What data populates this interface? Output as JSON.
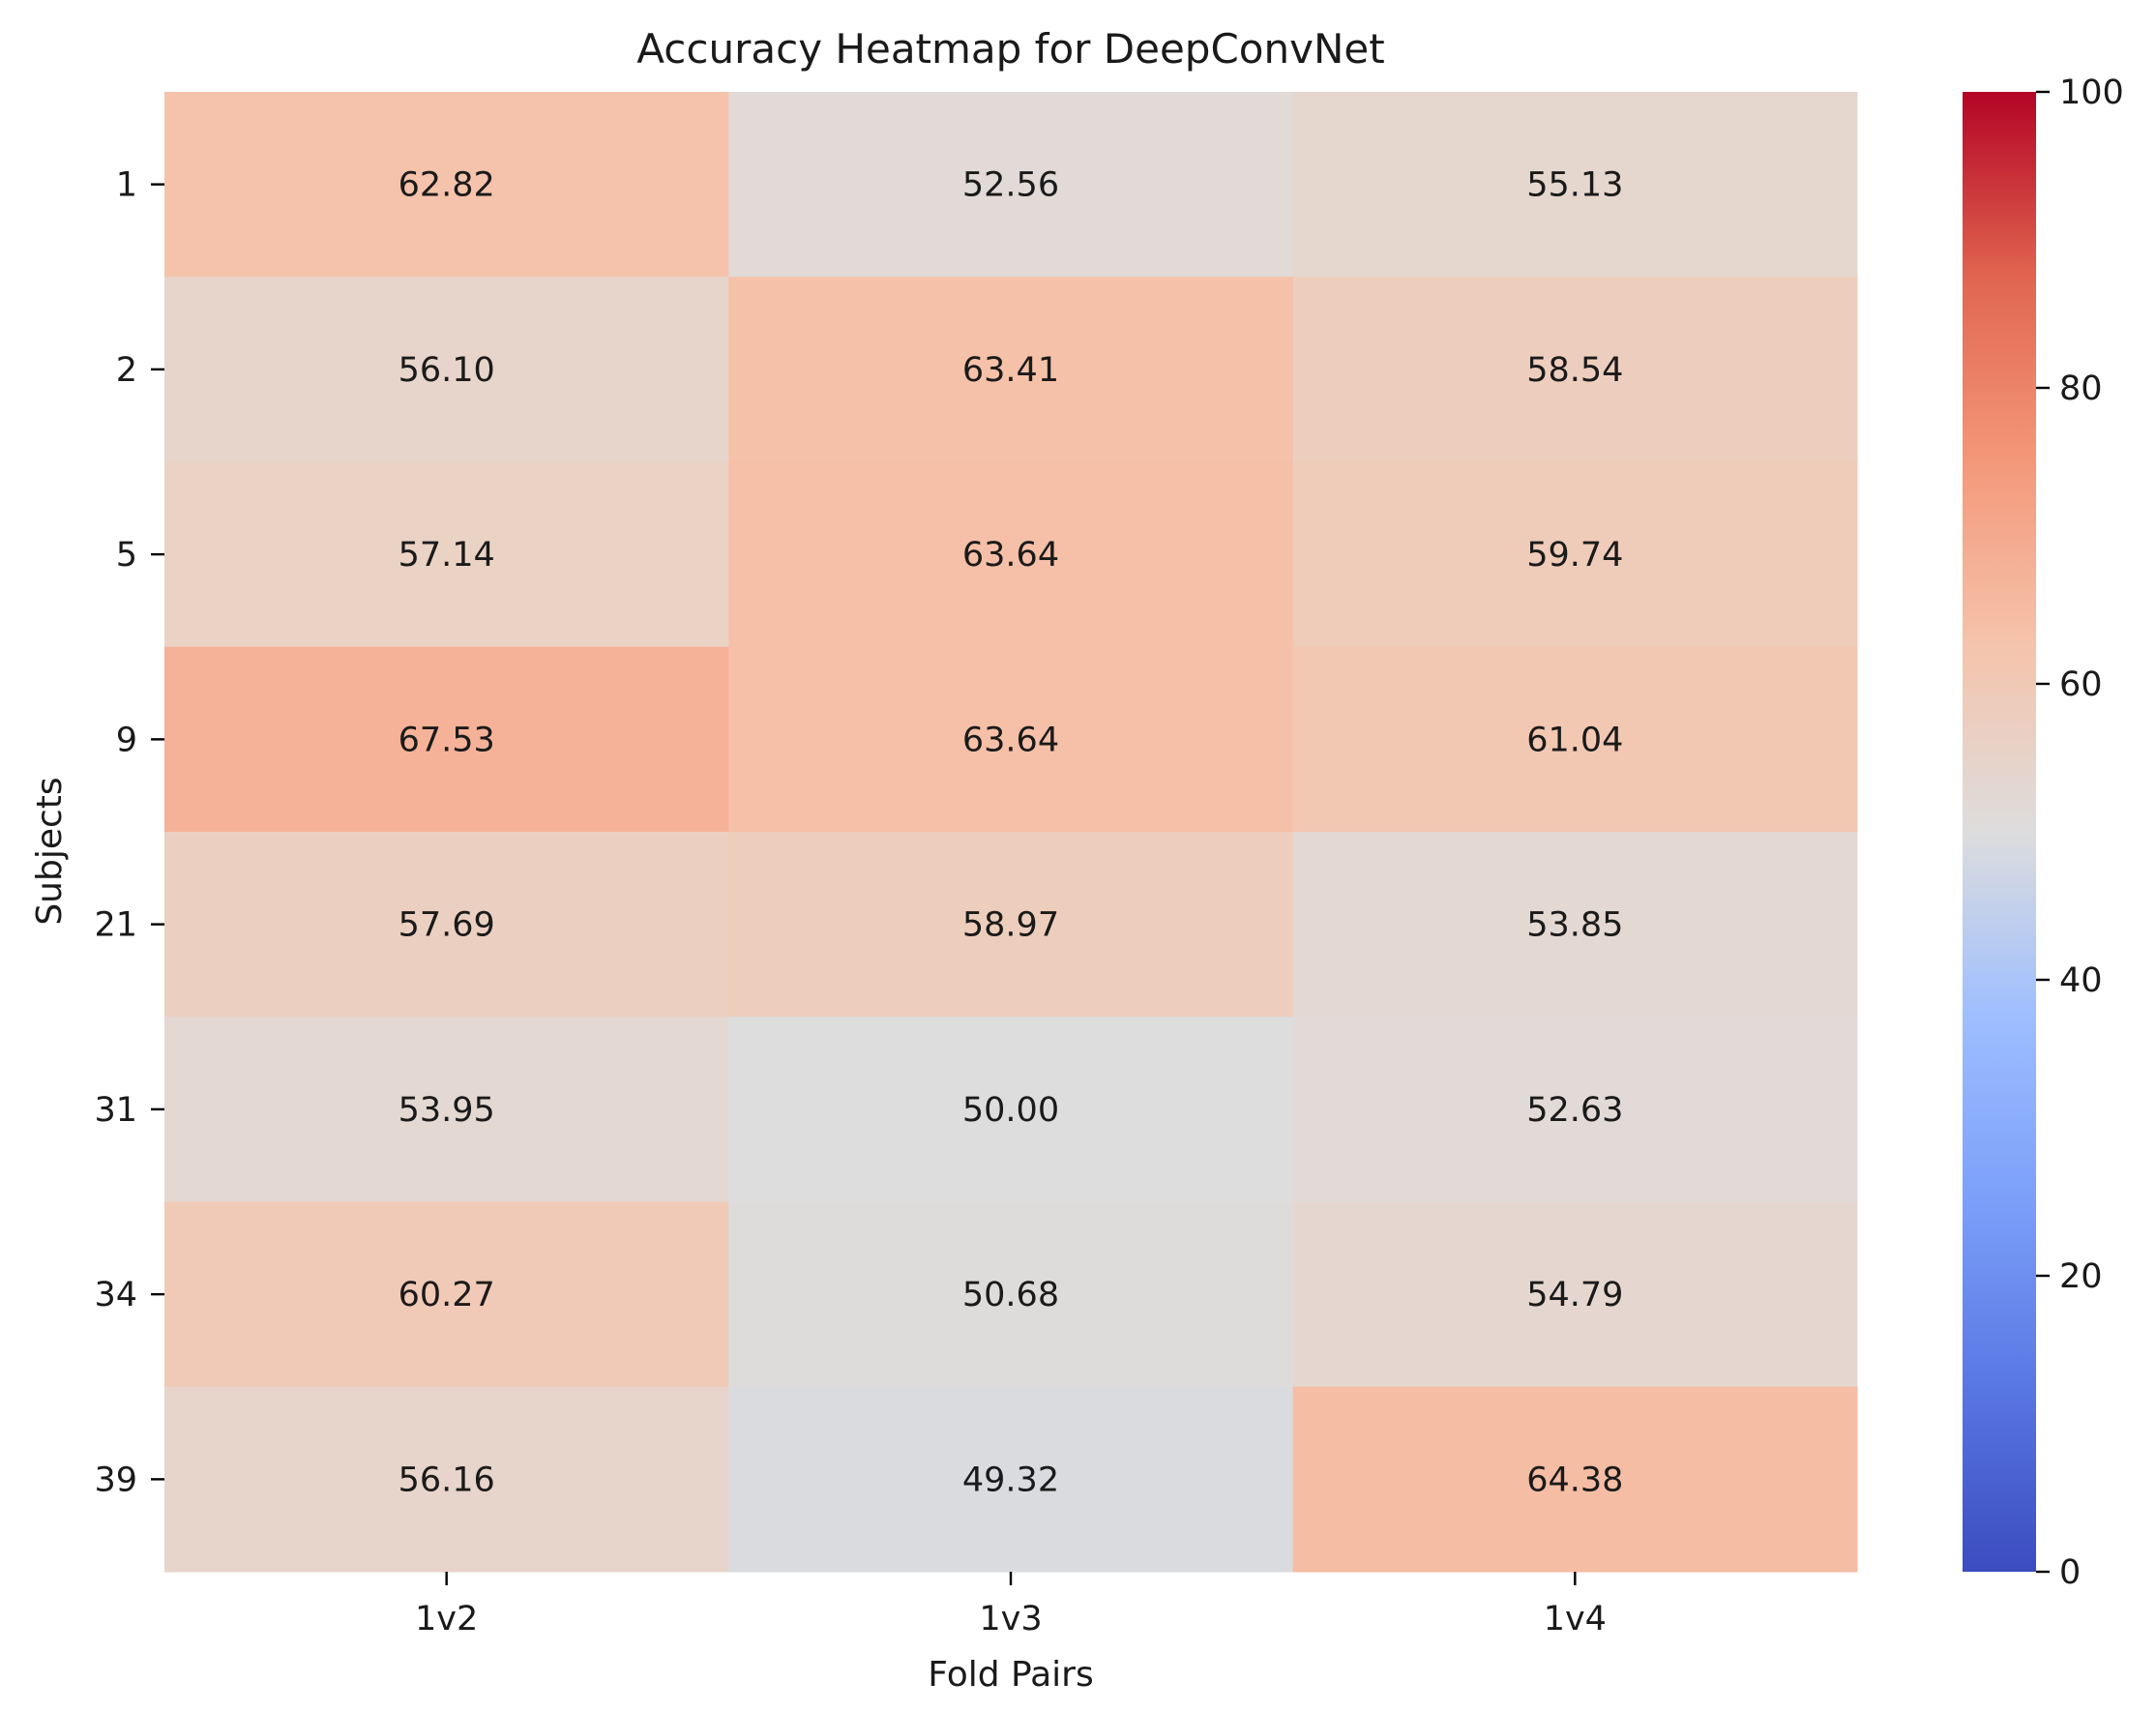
{
  "chart_data": {
    "type": "heatmap",
    "title": "Accuracy Heatmap for DeepConvNet",
    "xlabel": "Fold Pairs",
    "ylabel": "Subjects",
    "columns": [
      "1v2",
      "1v3",
      "1v4"
    ],
    "rows": [
      "1",
      "2",
      "5",
      "9",
      "21",
      "31",
      "34",
      "39"
    ],
    "values": [
      [
        62.82,
        52.56,
        55.13
      ],
      [
        56.1,
        63.41,
        58.54
      ],
      [
        57.14,
        63.64,
        59.74
      ],
      [
        67.53,
        63.64,
        61.04
      ],
      [
        57.69,
        58.97,
        53.85
      ],
      [
        53.95,
        50.0,
        52.63
      ],
      [
        60.27,
        50.68,
        54.79
      ],
      [
        56.16,
        49.32,
        64.38
      ]
    ],
    "value_labels": [
      [
        "62.82",
        "52.56",
        "55.13"
      ],
      [
        "56.10",
        "63.41",
        "58.54"
      ],
      [
        "57.14",
        "63.64",
        "59.74"
      ],
      [
        "67.53",
        "63.64",
        "61.04"
      ],
      [
        "57.69",
        "58.97",
        "53.85"
      ],
      [
        "53.95",
        "50.00",
        "52.63"
      ],
      [
        "60.27",
        "50.68",
        "54.79"
      ],
      [
        "56.16",
        "49.32",
        "64.38"
      ]
    ],
    "colormap": "coolwarm",
    "colorbar": {
      "vmin": 0,
      "vmax": 100,
      "ticks": [
        "0",
        "20",
        "40",
        "60",
        "80",
        "100"
      ]
    }
  }
}
